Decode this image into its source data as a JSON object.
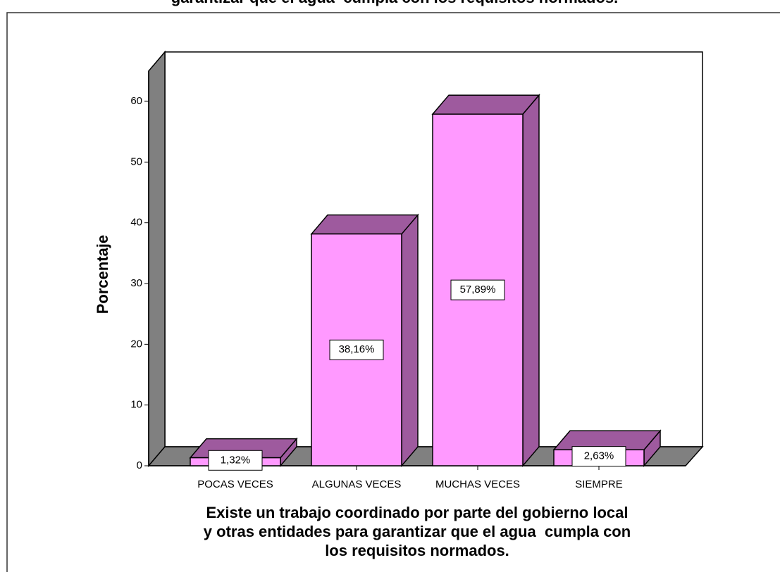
{
  "chart_data": {
    "type": "bar3d",
    "title": "garantizar que el agua  cumpla con los requisitos normados.",
    "ylabel": "Porcentaje",
    "xlabel": [
      "Existe un trabajo coordinado por parte del gobierno local",
      "y otras entidades para garantizar que el agua  cumpla con",
      "los requisitos normados."
    ],
    "categories": [
      "POCAS VECES",
      "ALGUNAS VECES",
      "MUCHAS VECES",
      "SIEMPRE"
    ],
    "values": [
      1.32,
      38.16,
      57.89,
      2.63
    ],
    "value_labels": [
      "1,32%",
      "38,16%",
      "57,89%",
      "2,63%"
    ],
    "color": "#ff99ff",
    "side_color": "#9e5a9e",
    "ylim": [
      0,
      65
    ],
    "yticks": [
      0,
      10,
      20,
      30,
      40,
      50,
      60
    ]
  }
}
